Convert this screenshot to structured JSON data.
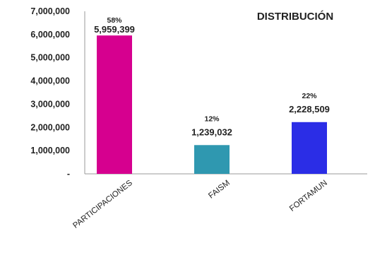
{
  "chart_data": {
    "type": "bar",
    "title": "DISTRIBUCIÓN",
    "xlabel": "",
    "ylabel": "",
    "ylim": [
      0,
      7000000
    ],
    "yticks": [
      0,
      1000000,
      2000000,
      3000000,
      4000000,
      5000000,
      6000000,
      7000000
    ],
    "ytick_labels": [
      "-",
      "1,000,000",
      "2,000,000",
      "3,000,000",
      "4,000,000",
      "5,000,000",
      "6,000,000",
      "7,000,000"
    ],
    "grid": false,
    "legend": "none",
    "categories": [
      "PARTICIPACIONES",
      "FAISM",
      "FORTAMUN"
    ],
    "values": [
      5959399,
      1239032,
      2228509
    ],
    "value_labels": [
      "5,959,399",
      "1,239,032",
      "2,228,509"
    ],
    "percent_labels": [
      "58%",
      "12%",
      "22%"
    ],
    "colors": [
      "#d6008f",
      "#2f98b0",
      "#2b2de6"
    ]
  }
}
